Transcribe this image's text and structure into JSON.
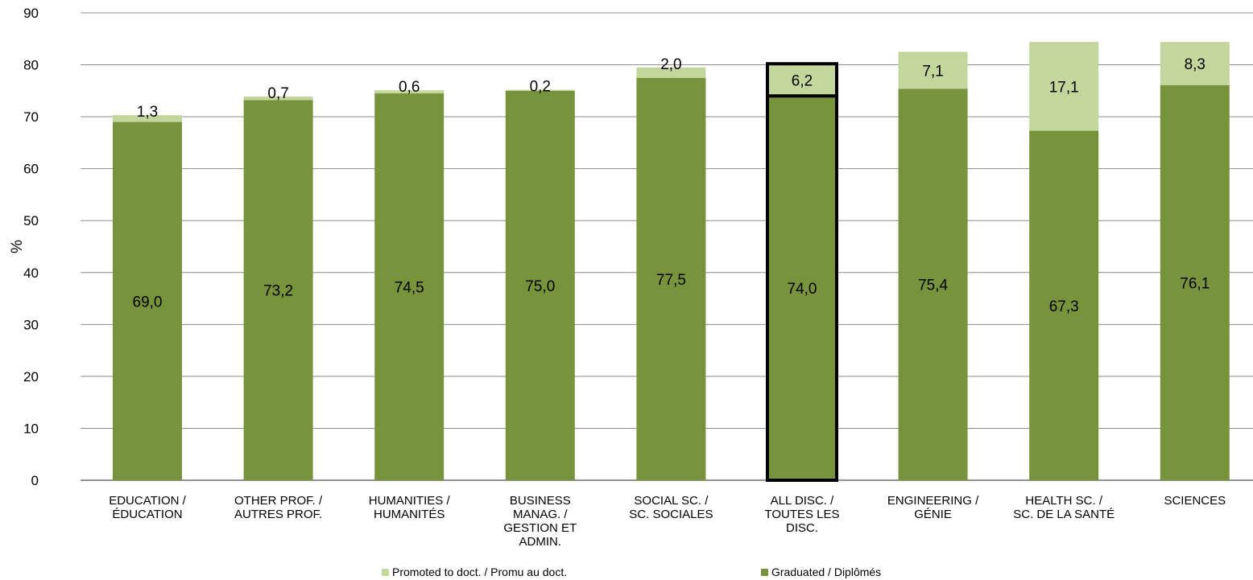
{
  "chart_data": {
    "type": "bar",
    "stacked": true,
    "ylabel": "%",
    "xlabel": "",
    "ylim": [
      0,
      90
    ],
    "yticks": [
      0,
      10,
      20,
      30,
      40,
      50,
      60,
      70,
      80,
      90
    ],
    "grid": true,
    "legend_position": "bottom",
    "categories": [
      [
        "EDUCATION /",
        "ÉDUCATION"
      ],
      [
        "OTHER PROF. /",
        "AUTRES PROF."
      ],
      [
        "HUMANITIES /",
        "HUMANITÉS"
      ],
      [
        "BUSINESS",
        "MANAG. /",
        "GESTION ET",
        "ADMIN."
      ],
      [
        "SOCIAL SC. /",
        "SC. SOCIALES"
      ],
      [
        "ALL DISC. /",
        "TOUTES LES",
        "DISC."
      ],
      [
        "ENGINEERING /",
        "GÉNIE"
      ],
      [
        "HEALTH SC. /",
        "SC. DE LA SANTÉ"
      ],
      [
        "SCIENCES"
      ]
    ],
    "highlighted_category": 5,
    "series": [
      {
        "name": "Graduated / Diplômés",
        "color": "#77933c",
        "values": [
          69.0,
          73.2,
          74.5,
          75.0,
          77.5,
          74.0,
          75.4,
          67.3,
          76.1
        ],
        "labels": [
          "69,0",
          "73,2",
          "74,5",
          "75,0",
          "77,5",
          "74,0",
          "75,4",
          "67,3",
          "76,1"
        ]
      },
      {
        "name": "Promoted to doct. / Promu au doct.",
        "color": "#c3d69b",
        "values": [
          1.3,
          0.7,
          0.6,
          0.2,
          2.0,
          6.2,
          7.1,
          17.1,
          8.3
        ],
        "labels": [
          "1,3",
          "0,7",
          "0,6",
          "0,2",
          "2,0",
          "6,2",
          "7,1",
          "17,1",
          "8,3"
        ]
      }
    ],
    "legend_order": [
      1,
      0
    ]
  }
}
